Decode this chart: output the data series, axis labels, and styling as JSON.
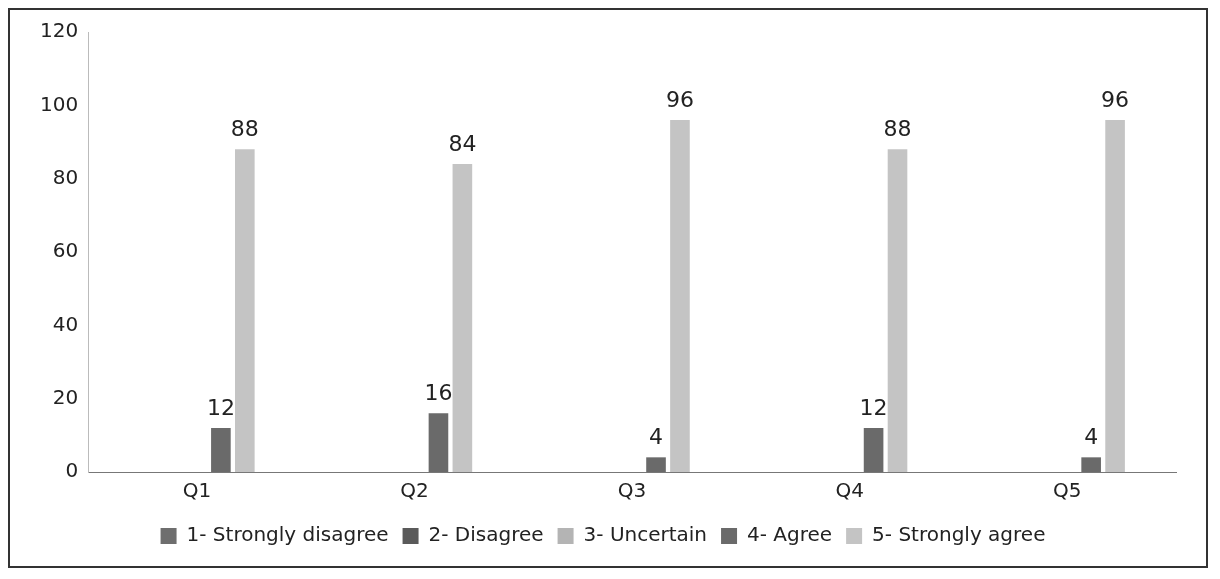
{
  "chart_data": {
    "type": "bar",
    "categories": [
      "Q1",
      "Q2",
      "Q3",
      "Q4",
      "Q5"
    ],
    "series": [
      {
        "name": "1- Strongly disagree",
        "color": "#6e6e6e",
        "values": [
          0,
          0,
          0,
          0,
          0
        ]
      },
      {
        "name": "2- Disagree",
        "color": "#5a5a5a",
        "values": [
          0,
          0,
          0,
          0,
          0
        ]
      },
      {
        "name": "3- Uncertain",
        "color": "#b4b4b4",
        "values": [
          0,
          0,
          0,
          0,
          0
        ]
      },
      {
        "name": "4- Agree",
        "color": "#6a6a6a",
        "values": [
          12,
          16,
          4,
          12,
          4
        ],
        "value_labels": [
          "12",
          "16",
          "4",
          "12",
          "4"
        ]
      },
      {
        "name": "5- Strongly agree",
        "color": "#c4c4c4",
        "values": [
          88,
          84,
          96,
          88,
          96
        ],
        "value_labels": [
          "88",
          "84",
          "96",
          "88",
          "96"
        ]
      }
    ],
    "ylim": [
      0,
      120
    ],
    "yticks": [
      0,
      20,
      40,
      60,
      80,
      100,
      120
    ],
    "grid": false,
    "legend": "bottom"
  }
}
